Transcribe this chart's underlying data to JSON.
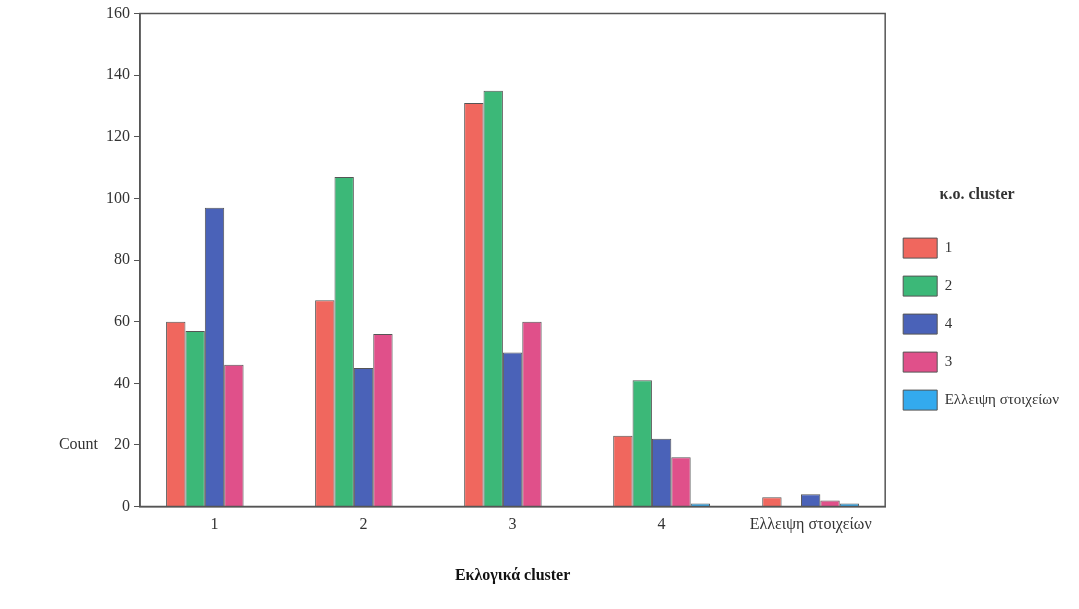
{
  "chart_data": {
    "type": "bar",
    "xlabel": "Εκλογικά cluster",
    "ylabel": "Count",
    "legend_title": "κ.ο. cluster",
    "categories": [
      "1",
      "2",
      "3",
      "4",
      "Ελλειψη στοιχείων"
    ],
    "series": [
      {
        "name": "1",
        "color": "#f0675e",
        "values": [
          60,
          67,
          131,
          23,
          3
        ]
      },
      {
        "name": "2",
        "color": "#3cb878",
        "values": [
          57,
          107,
          135,
          41,
          0
        ]
      },
      {
        "name": "4",
        "color": "#4a62b8",
        "values": [
          97,
          45,
          50,
          22,
          4
        ]
      },
      {
        "name": "3",
        "color": "#e0508a",
        "values": [
          46,
          56,
          60,
          16,
          2
        ]
      },
      {
        "name": "Ελλειψη στοιχείων",
        "color": "#33aaee",
        "values": [
          0,
          0,
          0,
          1,
          1
        ]
      }
    ],
    "ylim": [
      0,
      160
    ],
    "yticks": [
      0,
      20,
      40,
      60,
      80,
      100,
      120,
      140,
      160
    ],
    "grid": false,
    "legend": "right"
  }
}
